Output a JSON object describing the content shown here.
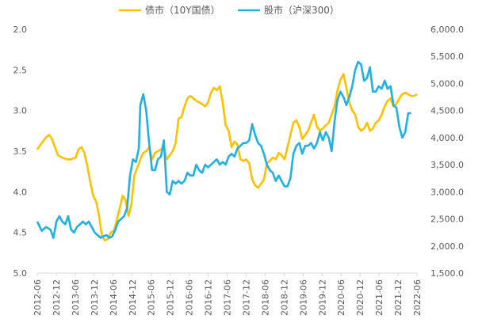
{
  "chart_data": {
    "type": "line",
    "title": "",
    "legend": {
      "position": "top"
    },
    "x_categories": [
      "2012-06",
      "2012-12",
      "2013-06",
      "2013-12",
      "2014-06",
      "2014-12",
      "2015-06",
      "2015-12",
      "2016-06",
      "2016-12",
      "2017-06",
      "2017-12",
      "2018-06",
      "2018-12",
      "2019-06",
      "2019-12",
      "2020-06",
      "2020-12",
      "2021-06",
      "2021-12",
      "2022-06"
    ],
    "y_left": {
      "min": 2.0,
      "max": 5.0,
      "reversed": true,
      "ticks": [
        "2.0",
        "2.5",
        "3.0",
        "3.5",
        "4.0",
        "4.5",
        "5.0"
      ],
      "values": [
        2.0,
        2.5,
        3.0,
        3.5,
        4.0,
        4.5,
        5.0
      ]
    },
    "y_right": {
      "min": 1500,
      "max": 6000,
      "ticks": [
        "6,000.0",
        "5,500.0",
        "5,000.0",
        "4,500.0",
        "4,000.0",
        "3,500.0",
        "3,000.0",
        "2,500.0",
        "2,000.0",
        "1,500.0"
      ],
      "values": [
        6000,
        5500,
        5000,
        4500,
        4000,
        3500,
        3000,
        2500,
        2000,
        1500
      ]
    },
    "grid": {
      "horizontal": false,
      "vertical": false
    },
    "series": [
      {
        "name": "债市（10Y国债）",
        "axis": "left",
        "color": "#FFC000",
        "points": [
          [
            0,
            3.48
          ],
          [
            0.3,
            3.4
          ],
          [
            0.6,
            3.33
          ],
          [
            0.8,
            3.3
          ],
          [
            1.0,
            3.35
          ],
          [
            1.2,
            3.45
          ],
          [
            1.4,
            3.55
          ],
          [
            1.7,
            3.58
          ],
          [
            2.0,
            3.6
          ],
          [
            2.3,
            3.6
          ],
          [
            2.6,
            3.58
          ],
          [
            2.8,
            3.48
          ],
          [
            3.0,
            3.45
          ],
          [
            3.2,
            3.52
          ],
          [
            3.4,
            3.68
          ],
          [
            3.6,
            3.88
          ],
          [
            3.8,
            4.05
          ],
          [
            4.0,
            4.12
          ],
          [
            4.2,
            4.3
          ],
          [
            4.4,
            4.55
          ],
          [
            4.6,
            4.6
          ],
          [
            4.8,
            4.58
          ],
          [
            5.0,
            4.5
          ],
          [
            5.2,
            4.48
          ],
          [
            5.4,
            4.35
          ],
          [
            5.6,
            4.2
          ],
          [
            5.8,
            4.05
          ],
          [
            6.0,
            4.1
          ],
          [
            6.2,
            4.3
          ],
          [
            6.4,
            4.15
          ],
          [
            6.6,
            3.8
          ],
          [
            6.8,
            3.7
          ],
          [
            7.0,
            3.6
          ],
          [
            7.2,
            3.52
          ],
          [
            7.4,
            3.5
          ],
          [
            7.6,
            3.45
          ],
          [
            7.8,
            3.6
          ],
          [
            8.0,
            3.52
          ],
          [
            8.2,
            3.5
          ],
          [
            8.4,
            3.48
          ],
          [
            8.6,
            3.45
          ],
          [
            8.8,
            3.6
          ],
          [
            9.0,
            3.55
          ],
          [
            9.2,
            3.5
          ],
          [
            9.4,
            3.4
          ],
          [
            9.6,
            3.1
          ],
          [
            9.8,
            3.08
          ],
          [
            10.0,
            2.95
          ],
          [
            10.2,
            2.85
          ],
          [
            10.4,
            2.82
          ],
          [
            10.6,
            2.85
          ],
          [
            10.8,
            2.88
          ],
          [
            11.0,
            2.9
          ],
          [
            11.2,
            2.92
          ],
          [
            11.4,
            2.95
          ],
          [
            11.6,
            2.9
          ],
          [
            11.8,
            2.78
          ],
          [
            12.0,
            2.72
          ],
          [
            12.2,
            2.75
          ],
          [
            12.4,
            2.7
          ],
          [
            12.6,
            2.9
          ],
          [
            12.8,
            3.18
          ],
          [
            13.0,
            3.25
          ],
          [
            13.2,
            3.45
          ],
          [
            13.4,
            3.38
          ],
          [
            13.6,
            3.42
          ],
          [
            13.8,
            3.6
          ],
          [
            14.0,
            3.62
          ],
          [
            14.2,
            3.6
          ],
          [
            14.4,
            3.65
          ],
          [
            14.6,
            3.85
          ],
          [
            14.8,
            3.92
          ],
          [
            15.0,
            3.95
          ],
          [
            15.2,
            3.9
          ],
          [
            15.4,
            3.85
          ],
          [
            15.6,
            3.65
          ],
          [
            15.8,
            3.62
          ],
          [
            16.0,
            3.58
          ],
          [
            16.2,
            3.6
          ],
          [
            16.4,
            3.52
          ],
          [
            16.6,
            3.55
          ],
          [
            16.8,
            3.6
          ],
          [
            17.0,
            3.45
          ],
          [
            17.2,
            3.3
          ],
          [
            17.4,
            3.15
          ],
          [
            17.6,
            3.12
          ],
          [
            17.8,
            3.2
          ],
          [
            18.0,
            3.35
          ],
          [
            18.2,
            3.3
          ],
          [
            18.4,
            3.25
          ],
          [
            18.6,
            3.15
          ],
          [
            18.8,
            3.05
          ],
          [
            19.0,
            3.2
          ],
          [
            19.2,
            3.25
          ],
          [
            19.4,
            3.22
          ],
          [
            19.6,
            3.18
          ],
          [
            19.8,
            3.15
          ],
          [
            20.0,
            3.05
          ],
          [
            20.2,
            2.95
          ],
          [
            20.4,
            2.75
          ],
          [
            20.6,
            2.62
          ],
          [
            20.8,
            2.55
          ],
          [
            21.0,
            2.72
          ],
          [
            21.2,
            2.9
          ],
          [
            21.4,
            3.0
          ],
          [
            21.6,
            3.05
          ],
          [
            21.8,
            3.2
          ],
          [
            22.0,
            3.25
          ],
          [
            22.2,
            3.22
          ],
          [
            22.4,
            3.15
          ],
          [
            22.6,
            3.25
          ],
          [
            22.8,
            3.22
          ],
          [
            23.0,
            3.15
          ],
          [
            23.2,
            3.12
          ],
          [
            23.4,
            3.05
          ],
          [
            23.6,
            2.95
          ],
          [
            23.8,
            2.88
          ],
          [
            24.0,
            2.85
          ],
          [
            24.2,
            2.95
          ],
          [
            24.4,
            2.92
          ],
          [
            24.6,
            2.85
          ],
          [
            24.8,
            2.8
          ],
          [
            25.0,
            2.78
          ],
          [
            25.2,
            2.8
          ],
          [
            25.4,
            2.82
          ],
          [
            25.6,
            2.82
          ],
          [
            25.8,
            2.8
          ]
        ]
      },
      {
        "name": "股市（沪深300）",
        "axis": "right",
        "color": "#1FB0E5",
        "points": [
          [
            0,
            2450
          ],
          [
            0.3,
            2280
          ],
          [
            0.6,
            2350
          ],
          [
            0.9,
            2300
          ],
          [
            1.1,
            2150
          ],
          [
            1.3,
            2450
          ],
          [
            1.5,
            2550
          ],
          [
            1.7,
            2450
          ],
          [
            1.9,
            2400
          ],
          [
            2.1,
            2550
          ],
          [
            2.3,
            2300
          ],
          [
            2.5,
            2250
          ],
          [
            2.7,
            2350
          ],
          [
            2.9,
            2400
          ],
          [
            3.1,
            2450
          ],
          [
            3.3,
            2400
          ],
          [
            3.5,
            2450
          ],
          [
            3.7,
            2350
          ],
          [
            3.9,
            2250
          ],
          [
            4.1,
            2200
          ],
          [
            4.3,
            2150
          ],
          [
            4.5,
            2180
          ],
          [
            4.7,
            2200
          ],
          [
            4.9,
            2150
          ],
          [
            5.1,
            2180
          ],
          [
            5.3,
            2300
          ],
          [
            5.5,
            2450
          ],
          [
            5.7,
            2500
          ],
          [
            5.9,
            2550
          ],
          [
            6.1,
            2700
          ],
          [
            6.3,
            3300
          ],
          [
            6.5,
            3600
          ],
          [
            6.7,
            3550
          ],
          [
            6.9,
            3800
          ],
          [
            7.0,
            4600
          ],
          [
            7.2,
            4800
          ],
          [
            7.4,
            4500
          ],
          [
            7.6,
            3900
          ],
          [
            7.8,
            3400
          ],
          [
            8.0,
            3400
          ],
          [
            8.2,
            3600
          ],
          [
            8.4,
            3650
          ],
          [
            8.6,
            3950
          ],
          [
            8.8,
            3000
          ],
          [
            9.0,
            2950
          ],
          [
            9.2,
            3200
          ],
          [
            9.4,
            3150
          ],
          [
            9.6,
            3200
          ],
          [
            9.8,
            3150
          ],
          [
            10.0,
            3200
          ],
          [
            10.2,
            3350
          ],
          [
            10.4,
            3300
          ],
          [
            10.6,
            3300
          ],
          [
            10.8,
            3500
          ],
          [
            11.0,
            3400
          ],
          [
            11.2,
            3350
          ],
          [
            11.4,
            3500
          ],
          [
            11.6,
            3450
          ],
          [
            11.8,
            3500
          ],
          [
            12.0,
            3550
          ],
          [
            12.2,
            3600
          ],
          [
            12.4,
            3500
          ],
          [
            12.6,
            3550
          ],
          [
            12.8,
            3500
          ],
          [
            13.0,
            3650
          ],
          [
            13.2,
            3700
          ],
          [
            13.4,
            3650
          ],
          [
            13.6,
            3800
          ],
          [
            13.8,
            3850
          ],
          [
            14.0,
            3900
          ],
          [
            14.2,
            3900
          ],
          [
            14.4,
            3950
          ],
          [
            14.6,
            4250
          ],
          [
            14.8,
            4050
          ],
          [
            15.0,
            3900
          ],
          [
            15.2,
            3850
          ],
          [
            15.4,
            3700
          ],
          [
            15.6,
            3500
          ],
          [
            15.8,
            3400
          ],
          [
            16.0,
            3350
          ],
          [
            16.2,
            3200
          ],
          [
            16.4,
            3300
          ],
          [
            16.6,
            3200
          ],
          [
            16.8,
            3100
          ],
          [
            17.0,
            3100
          ],
          [
            17.2,
            3250
          ],
          [
            17.4,
            3700
          ],
          [
            17.6,
            3850
          ],
          [
            17.8,
            3900
          ],
          [
            18.0,
            3700
          ],
          [
            18.2,
            3850
          ],
          [
            18.4,
            3850
          ],
          [
            18.6,
            3900
          ],
          [
            18.8,
            3800
          ],
          [
            19.0,
            3900
          ],
          [
            19.2,
            4100
          ],
          [
            19.4,
            3950
          ],
          [
            19.6,
            4100
          ],
          [
            19.8,
            4000
          ],
          [
            20.0,
            3750
          ],
          [
            20.2,
            4300
          ],
          [
            20.4,
            4700
          ],
          [
            20.6,
            4850
          ],
          [
            20.8,
            4750
          ],
          [
            21.0,
            4600
          ],
          [
            21.2,
            4750
          ],
          [
            21.4,
            4950
          ],
          [
            21.6,
            5250
          ],
          [
            21.8,
            5400
          ],
          [
            22.0,
            5350
          ],
          [
            22.2,
            5050
          ],
          [
            22.4,
            5100
          ],
          [
            22.6,
            5300
          ],
          [
            22.8,
            4850
          ],
          [
            23.0,
            4850
          ],
          [
            23.2,
            4950
          ],
          [
            23.4,
            4900
          ],
          [
            23.6,
            5050
          ],
          [
            23.8,
            4900
          ],
          [
            24.0,
            4950
          ],
          [
            24.2,
            4600
          ],
          [
            24.4,
            4550
          ],
          [
            24.6,
            4200
          ],
          [
            24.8,
            4000
          ],
          [
            25.0,
            4100
          ],
          [
            25.2,
            4450
          ],
          [
            25.4,
            4450
          ]
        ]
      }
    ]
  }
}
